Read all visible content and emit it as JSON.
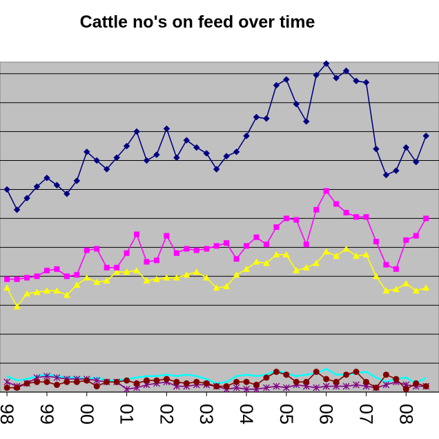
{
  "chart_data": {
    "type": "line",
    "title": "Cattle no's on feed over time",
    "xlabel": "",
    "ylabel": "",
    "grid": true,
    "plot_background": "#c0c0c0",
    "x_tick_labels": [
      "98",
      "99",
      "00",
      "01",
      "02",
      "03",
      "04",
      "05",
      "06",
      "07",
      "08"
    ],
    "x_tick_positions": [
      0,
      4,
      8,
      12,
      16,
      20,
      24,
      28,
      32,
      36,
      40
    ],
    "x_range": [
      -0.7,
      43.3
    ],
    "ylim": [
      0,
      11.4
    ],
    "series": [
      {
        "color": "#000080",
        "marker": "diamond",
        "values": [
          7.0,
          6.3,
          6.7,
          7.1,
          7.4,
          7.15,
          6.85,
          7.3,
          8.3,
          8.0,
          7.7,
          8.1,
          8.5,
          9.0,
          8.0,
          8.2,
          9.1,
          8.1,
          8.7,
          8.45,
          8.25,
          7.7,
          8.15,
          8.3,
          8.85,
          9.5,
          9.45,
          10.6,
          10.8,
          9.95,
          9.35,
          10.95,
          11.35,
          10.85,
          11.1,
          10.75,
          10.7,
          8.4,
          7.5,
          7.65,
          8.45,
          7.95,
          8.85
        ]
      },
      {
        "color": "#ff00ff",
        "marker": "square",
        "values": [
          3.9,
          3.9,
          3.95,
          4.0,
          4.2,
          4.25,
          4.0,
          4.05,
          4.9,
          4.95,
          4.3,
          4.3,
          4.8,
          5.45,
          4.5,
          4.55,
          5.4,
          4.8,
          4.95,
          4.9,
          4.95,
          5.05,
          5.15,
          4.6,
          5.05,
          5.35,
          5.1,
          5.7,
          6.0,
          5.95,
          5.1,
          6.3,
          6.95,
          6.5,
          6.2,
          6.05,
          6.05,
          5.2,
          4.4,
          4.25,
          5.25,
          5.4,
          6.0
        ]
      },
      {
        "color": "#ffff00",
        "marker": "triangle",
        "values": [
          3.6,
          2.95,
          3.4,
          3.45,
          3.5,
          3.5,
          3.35,
          3.7,
          3.95,
          3.8,
          3.85,
          4.15,
          4.15,
          4.2,
          3.85,
          3.9,
          3.95,
          3.95,
          4.05,
          4.15,
          3.95,
          3.6,
          3.65,
          4.05,
          4.25,
          4.5,
          4.45,
          4.75,
          4.75,
          4.2,
          4.3,
          4.45,
          4.85,
          4.7,
          4.95,
          4.7,
          4.75,
          4.0,
          3.5,
          3.55,
          3.75,
          3.5,
          3.6
        ]
      },
      {
        "color": "#00ffff",
        "marker": "none",
        "values": [
          0.55,
          0.4,
          0.45,
          0.55,
          0.6,
          0.55,
          0.5,
          0.5,
          0.45,
          0.5,
          0.4,
          0.4,
          0.45,
          0.5,
          0.55,
          0.55,
          0.6,
          0.55,
          0.6,
          0.55,
          0.45,
          0.3,
          0.35,
          0.55,
          0.6,
          0.55,
          0.6,
          0.75,
          0.65,
          0.55,
          0.6,
          0.65,
          0.8,
          0.6,
          0.6,
          0.65,
          0.7,
          0.5,
          0.35,
          0.45,
          0.5,
          0.3,
          0.5
        ]
      },
      {
        "color": "#800000",
        "marker": "circle",
        "values": [
          0.15,
          0.15,
          0.3,
          0.35,
          0.35,
          0.25,
          0.35,
          0.35,
          0.4,
          0.2,
          0.35,
          0.35,
          0.4,
          0.3,
          0.4,
          0.4,
          0.45,
          0.35,
          0.3,
          0.35,
          0.3,
          0.2,
          0.2,
          0.35,
          0.35,
          0.25,
          0.5,
          0.7,
          0.6,
          0.35,
          0.35,
          0.7,
          0.45,
          0.35,
          0.6,
          0.7,
          0.35,
          0.15,
          0.6,
          0.45,
          0.1,
          0.3,
          0.2
        ]
      },
      {
        "color": "#800080",
        "marker": "star",
        "values": [
          0.35,
          0.2,
          0.3,
          0.5,
          0.55,
          0.5,
          0.45,
          0.45,
          0.45,
          0.4,
          0.35,
          0.35,
          0.1,
          0.15,
          0.25,
          0.3,
          0.35,
          0.2,
          0.2,
          0.25,
          0.25,
          0.2,
          0.1,
          0.15,
          0.1,
          0.1,
          0.15,
          0.2,
          0.15,
          0.25,
          0.2,
          0.15,
          0.2,
          0.2,
          0.2,
          0.25,
          0.2,
          0.15,
          0.25,
          0.35,
          0.25,
          0.2,
          0.2
        ]
      }
    ]
  }
}
